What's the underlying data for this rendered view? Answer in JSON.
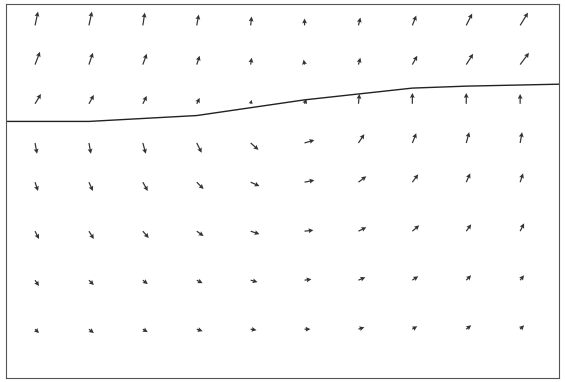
{
  "chart_data": {
    "type": "quiver",
    "x": [
      30,
      85,
      140,
      195,
      250,
      305,
      360,
      415,
      470,
      525
    ],
    "y": [
      360,
      320,
      280,
      240,
      200,
      150,
      100,
      50
    ],
    "u": [
      [
        3,
        3,
        2,
        2,
        1,
        0,
        2,
        4,
        6,
        8
      ],
      [
        5,
        4,
        4,
        3,
        1,
        -1,
        2,
        5,
        7,
        9
      ],
      [
        6,
        5,
        4,
        3,
        1,
        2,
        1,
        0,
        0,
        0
      ],
      [
        2,
        2,
        3,
        5,
        8,
        10,
        6,
        4,
        3,
        2
      ],
      [
        3,
        4,
        5,
        7,
        9,
        10,
        8,
        6,
        4,
        3
      ],
      [
        4,
        5,
        6,
        7,
        9,
        9,
        8,
        7,
        5,
        4
      ],
      [
        4,
        5,
        5,
        6,
        7,
        7,
        7,
        6,
        5,
        4
      ],
      [
        4,
        5,
        5,
        6,
        6,
        6,
        6,
        5,
        5,
        4
      ]
    ],
    "v": [
      [
        14,
        14,
        13,
        11,
        9,
        7,
        8,
        10,
        12,
        13
      ],
      [
        13,
        12,
        11,
        9,
        7,
        5,
        7,
        9,
        11,
        12
      ],
      [
        10,
        9,
        8,
        6,
        4,
        5,
        10,
        11,
        11,
        10
      ],
      [
        -11,
        -11,
        -11,
        -10,
        -7,
        3,
        9,
        10,
        11,
        11
      ],
      [
        -9,
        -9,
        -9,
        -7,
        -4,
        2,
        6,
        8,
        9,
        9
      ],
      [
        -8,
        -8,
        -7,
        -5,
        -3,
        1,
        4,
        6,
        7,
        8
      ],
      [
        -6,
        -5,
        -4,
        -3,
        -2,
        1,
        3,
        4,
        5,
        5
      ],
      [
        -4,
        -4,
        -3,
        -2,
        -1,
        0,
        2,
        3,
        4,
        4
      ]
    ],
    "boundary": {
      "x": [
        0,
        85,
        140,
        195,
        250,
        305,
        360,
        415,
        470,
        565
      ],
      "y": [
        262,
        262,
        265,
        268,
        276,
        284,
        290,
        296,
        298,
        300
      ]
    },
    "xlim": [
      0,
      565
    ],
    "ylim": [
      0,
      382
    ],
    "color": "#333333",
    "tick_labels": false
  }
}
